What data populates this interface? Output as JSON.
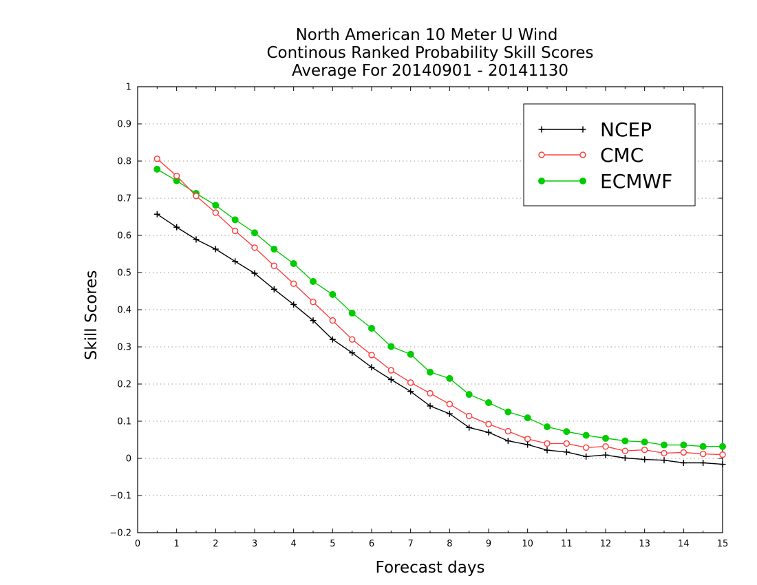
{
  "chart_data": {
    "type": "line",
    "title": [
      "North American 10 Meter U Wind",
      "Continous Ranked Probability Skill Scores",
      "Average For 20140901 - 20141130"
    ],
    "xlabel": "Forecast days",
    "ylabel": "Skill Scores",
    "xlim": [
      0,
      15
    ],
    "ylim": [
      -0.2,
      1
    ],
    "xticks": [
      "0",
      "1",
      "2",
      "3",
      "4",
      "5",
      "6",
      "7",
      "8",
      "9",
      "10",
      "11",
      "12",
      "13",
      "14",
      "15"
    ],
    "yticks": [
      "1",
      "0.9",
      "0.8",
      "0.7",
      "0.6",
      "0.5",
      "0.4",
      "0.3",
      "0.2",
      "0.1",
      "0",
      "−0.1",
      "−0.2"
    ],
    "grid": "horizontal dotted",
    "legend_position": "top-right",
    "x": [
      0.5,
      1,
      1.5,
      2,
      2.5,
      3,
      3.5,
      4,
      4.5,
      5,
      5.5,
      6,
      6.5,
      7,
      7.5,
      8,
      8.5,
      9,
      9.5,
      10,
      10.5,
      11,
      11.5,
      12,
      12.5,
      13,
      13.5,
      14,
      14.5,
      15
    ],
    "series": [
      {
        "name": "NCEP",
        "color": "#000000",
        "marker": "plus",
        "values": [
          0.657,
          0.622,
          0.589,
          0.563,
          0.53,
          0.498,
          0.455,
          0.414,
          0.371,
          0.32,
          0.284,
          0.245,
          0.212,
          0.18,
          0.141,
          0.12,
          0.083,
          0.07,
          0.047,
          0.037,
          0.022,
          0.017,
          0.005,
          0.009,
          0.001,
          -0.003,
          -0.005,
          -0.012,
          -0.012,
          -0.016
        ]
      },
      {
        "name": "CMC",
        "color": "#ff4040",
        "marker": "open-circle",
        "values": [
          0.806,
          0.76,
          0.706,
          0.661,
          0.612,
          0.567,
          0.518,
          0.47,
          0.421,
          0.371,
          0.32,
          0.278,
          0.237,
          0.204,
          0.175,
          0.146,
          0.114,
          0.092,
          0.073,
          0.052,
          0.04,
          0.04,
          0.029,
          0.032,
          0.02,
          0.023,
          0.014,
          0.016,
          0.012,
          0.01
        ]
      },
      {
        "name": "ECMWF",
        "color": "#00cc00",
        "marker": "filled-circle",
        "values": [
          0.778,
          0.747,
          0.713,
          0.681,
          0.642,
          0.607,
          0.563,
          0.524,
          0.476,
          0.441,
          0.391,
          0.35,
          0.301,
          0.28,
          0.232,
          0.215,
          0.172,
          0.15,
          0.125,
          0.109,
          0.085,
          0.072,
          0.062,
          0.054,
          0.047,
          0.044,
          0.036,
          0.036,
          0.032,
          0.032
        ]
      }
    ]
  }
}
